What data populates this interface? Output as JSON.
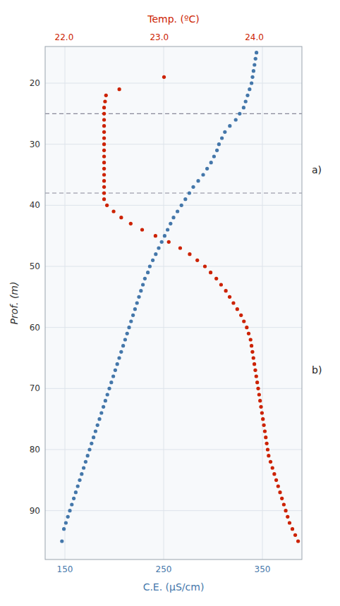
{
  "chart_data": {
    "type": "scatter",
    "xlabel": "C.E. (μS/cm)",
    "x2label": "Temp. (ºC)",
    "ylabel": "Prof. (m)",
    "xlim": [
      130,
      390
    ],
    "xticks": [
      150,
      250,
      350
    ],
    "x2lim": [
      21.8,
      24.5
    ],
    "x2ticks": [
      {
        "value": 22.0,
        "label": "22.0"
      },
      {
        "value": 23.0,
        "label": "23.0"
      },
      {
        "value": 24.0,
        "label": "24.0"
      }
    ],
    "ylim": [
      98,
      14
    ],
    "yticks": [
      20,
      30,
      40,
      50,
      60,
      70,
      80,
      90
    ],
    "grid": true,
    "hlines": [
      25,
      38
    ],
    "annotations": [
      {
        "text": "a)"
      },
      {
        "text": "b)"
      }
    ],
    "series": [
      {
        "color": "#4477aa",
        "marker": "circle",
        "x": [
          344,
          343,
          342,
          341,
          340,
          339,
          337,
          335,
          333,
          331,
          327,
          323,
          317,
          312,
          309,
          306,
          304,
          301,
          298,
          294,
          290,
          285,
          280,
          276,
          272,
          268,
          264,
          260,
          257,
          254,
          251,
          248,
          245,
          242,
          239,
          236,
          234,
          231,
          229,
          227,
          225,
          223,
          221,
          219,
          217,
          215,
          213,
          211,
          209,
          207,
          205,
          203,
          201,
          199,
          197,
          195,
          193,
          191,
          189,
          187,
          185,
          183,
          181,
          179,
          177,
          175,
          173,
          171,
          169,
          167,
          165,
          163,
          161,
          159,
          157,
          155,
          153,
          151,
          149,
          147
        ],
        "values": [
          15,
          16,
          17,
          18,
          19,
          20,
          21,
          22,
          23,
          24,
          25,
          26,
          27,
          28,
          29,
          30,
          31,
          32,
          33,
          34,
          35,
          36,
          37,
          38,
          39,
          40,
          41,
          42,
          43,
          44,
          45,
          46,
          47,
          48,
          49,
          50,
          51,
          52,
          53,
          54,
          55,
          56,
          57,
          58,
          59,
          60,
          61,
          62,
          63,
          64,
          65,
          66,
          67,
          68,
          69,
          70,
          71,
          72,
          73,
          74,
          75,
          76,
          77,
          78,
          79,
          80,
          81,
          82,
          83,
          84,
          85,
          86,
          87,
          88,
          89,
          90,
          91,
          92,
          93,
          95
        ]
      },
      {
        "color": "#cc2200",
        "marker": "circle",
        "axis": "x2",
        "x": [
          23.05,
          22.58,
          22.44,
          22.43,
          22.42,
          22.42,
          22.42,
          22.42,
          22.42,
          22.42,
          22.42,
          22.42,
          22.42,
          22.42,
          22.42,
          22.42,
          22.42,
          22.42,
          22.42,
          22.42,
          22.45,
          22.52,
          22.6,
          22.7,
          22.82,
          22.96,
          23.1,
          23.22,
          23.32,
          23.4,
          23.48,
          23.54,
          23.6,
          23.65,
          23.7,
          23.74,
          23.78,
          23.82,
          23.86,
          23.89,
          23.92,
          23.94,
          23.96,
          23.97,
          23.98,
          23.99,
          24.0,
          24.01,
          24.02,
          24.03,
          24.04,
          24.05,
          24.06,
          24.07,
          24.08,
          24.09,
          24.1,
          24.11,
          24.12,
          24.13,
          24.14,
          24.15,
          24.17,
          24.19,
          24.21,
          24.23,
          24.25,
          24.27,
          24.29,
          24.31,
          24.33,
          24.35,
          24.37,
          24.4,
          24.43,
          24.46
        ],
        "values": [
          19,
          21,
          22,
          23,
          24,
          25,
          26,
          27,
          28,
          29,
          30,
          31,
          32,
          33,
          34,
          35,
          36,
          37,
          38,
          39,
          40,
          41,
          42,
          43,
          44,
          45,
          46,
          47,
          48,
          49,
          50,
          51,
          52,
          53,
          54,
          55,
          56,
          57,
          58,
          59,
          60,
          61,
          62,
          63,
          64,
          65,
          66,
          67,
          68,
          69,
          70,
          71,
          72,
          73,
          74,
          75,
          76,
          77,
          78,
          79,
          80,
          81,
          82,
          83,
          84,
          85,
          86,
          87,
          88,
          89,
          90,
          91,
          92,
          93,
          94,
          95
        ]
      }
    ]
  }
}
